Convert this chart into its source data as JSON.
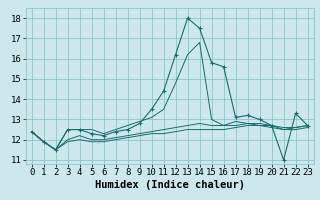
{
  "title": "",
  "xlabel": "Humidex (Indice chaleur)",
  "bg_color": "#cce8ec",
  "grid_color": "#7fbfc7",
  "line_color": "#1a6b6b",
  "x_values": [
    0,
    1,
    2,
    3,
    4,
    5,
    6,
    7,
    8,
    9,
    10,
    11,
    12,
    13,
    14,
    15,
    16,
    17,
    18,
    19,
    20,
    21,
    22,
    23
  ],
  "series": [
    [
      12.4,
      11.9,
      11.5,
      12.5,
      12.5,
      12.3,
      12.2,
      12.4,
      12.5,
      12.8,
      13.5,
      14.4,
      16.2,
      18.0,
      17.5,
      15.8,
      15.6,
      13.1,
      13.2,
      13.0,
      12.7,
      11.0,
      13.3,
      12.7
    ],
    [
      12.4,
      11.9,
      11.5,
      12.5,
      12.5,
      12.5,
      12.3,
      12.5,
      12.7,
      12.9,
      13.1,
      13.5,
      14.8,
      16.2,
      16.8,
      13.0,
      12.7,
      12.9,
      12.8,
      12.7,
      12.6,
      12.5,
      12.5,
      12.6
    ],
    [
      12.4,
      11.9,
      11.5,
      12.0,
      12.2,
      12.0,
      12.0,
      12.1,
      12.2,
      12.3,
      12.4,
      12.5,
      12.6,
      12.7,
      12.8,
      12.7,
      12.7,
      12.7,
      12.8,
      12.8,
      12.7,
      12.6,
      12.6,
      12.7
    ],
    [
      12.4,
      11.9,
      11.5,
      11.9,
      12.0,
      11.9,
      11.9,
      12.0,
      12.1,
      12.2,
      12.3,
      12.3,
      12.4,
      12.5,
      12.5,
      12.5,
      12.5,
      12.6,
      12.7,
      12.7,
      12.7,
      12.5,
      12.6,
      12.7
    ]
  ],
  "ylim": [
    10.8,
    18.5
  ],
  "xlim": [
    -0.5,
    23.5
  ],
  "yticks": [
    11,
    12,
    13,
    14,
    15,
    16,
    17,
    18
  ],
  "xticks": [
    0,
    1,
    2,
    3,
    4,
    5,
    6,
    7,
    8,
    9,
    10,
    11,
    12,
    13,
    14,
    15,
    16,
    17,
    18,
    19,
    20,
    21,
    22,
    23
  ],
  "xlabel_fontsize": 7.5,
  "tick_fontsize": 6.5
}
